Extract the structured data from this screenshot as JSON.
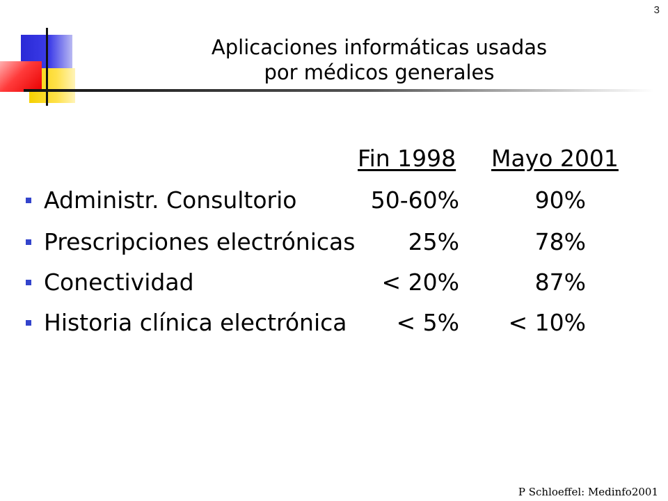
{
  "slide": {
    "page_number": "3",
    "title_line1": "Aplicaciones informáticas usadas",
    "title_line2": "por médicos generales",
    "columns": [
      "Fin 1998",
      "Mayo 2001"
    ],
    "rows": [
      {
        "label": "Administr. Consultorio",
        "fin_1998": "50-60%",
        "mayo_2001": "90%"
      },
      {
        "label": "Prescripciones electrónicas",
        "fin_1998": "25%",
        "mayo_2001": "78%"
      },
      {
        "label": "Conectividad",
        "fin_1998": "< 20%",
        "mayo_2001": "87%"
      },
      {
        "label": "Historia clínica electrónica",
        "fin_1998": "< 5%",
        "mayo_2001": "< 10%"
      }
    ],
    "footer": "P Schloeffel: Medinfo2001"
  },
  "colors": {
    "bullet": "#3344cc",
    "logo_blue": "#2a2ad6",
    "logo_yellow": "#f5d000",
    "logo_red": "#e80000"
  }
}
